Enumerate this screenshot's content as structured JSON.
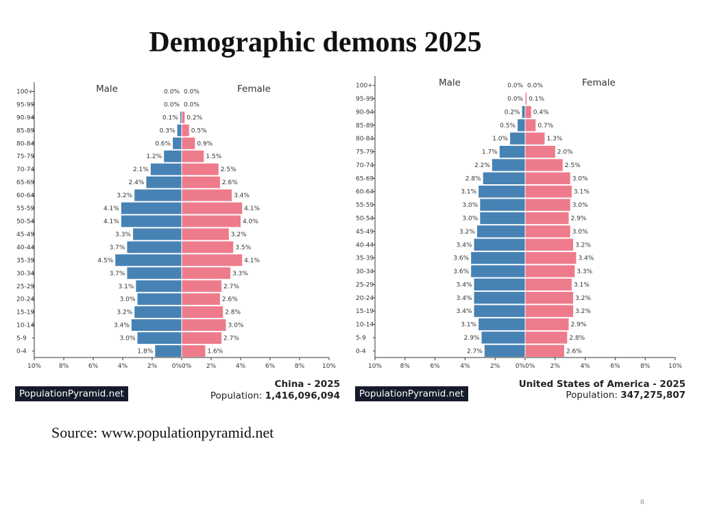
{
  "slide": {
    "title": "Demographic demons 2025",
    "source": "Source: www.populationpyramid.net",
    "page_number": "8"
  },
  "colors": {
    "male": "#4682b4",
    "female": "#ee7b8b",
    "axis": "#333333"
  },
  "chart_data": [
    {
      "type": "bar",
      "orientation": "population-pyramid",
      "series_labels": {
        "male": "Male",
        "female": "Female"
      },
      "categories": [
        "100+",
        "95-99",
        "90-94",
        "85-89",
        "80-84",
        "75-79",
        "70-74",
        "65-69",
        "60-64",
        "55-59",
        "50-54",
        "45-49",
        "40-44",
        "35-39",
        "30-34",
        "25-29",
        "20-24",
        "15-19",
        "10-14",
        "5-9",
        "0-4"
      ],
      "male": [
        0.0,
        0.0,
        0.1,
        0.3,
        0.6,
        1.2,
        2.1,
        2.4,
        3.2,
        4.1,
        4.1,
        3.3,
        3.7,
        4.5,
        3.7,
        3.1,
        3.0,
        3.2,
        3.4,
        3.0,
        1.8
      ],
      "female": [
        0.0,
        0.0,
        0.2,
        0.5,
        0.9,
        1.5,
        2.5,
        2.6,
        3.4,
        4.1,
        4.0,
        3.2,
        3.5,
        4.1,
        3.3,
        2.7,
        2.6,
        2.8,
        3.0,
        2.7,
        1.6
      ],
      "xlim": [
        -10,
        10
      ],
      "x_ticks": [
        "10%",
        "8%",
        "6%",
        "4%",
        "2%",
        "0%",
        "0%",
        "2%",
        "4%",
        "6%",
        "8%",
        "10%"
      ],
      "brand": "PopulationPyramid.net",
      "country": "China - 2025",
      "population_label": "Population:",
      "population": "1,416,096,094"
    },
    {
      "type": "bar",
      "orientation": "population-pyramid",
      "series_labels": {
        "male": "Male",
        "female": "Female"
      },
      "categories": [
        "100+",
        "95-99",
        "90-94",
        "85-89",
        "80-84",
        "75-79",
        "70-74",
        "65-69",
        "60-64",
        "55-59",
        "50-54",
        "45-49",
        "40-44",
        "35-39",
        "30-34",
        "25-29",
        "20-24",
        "15-19",
        "10-14",
        "5-9",
        "0-4"
      ],
      "male": [
        0.0,
        0.0,
        0.2,
        0.5,
        1.0,
        1.7,
        2.2,
        2.8,
        3.1,
        3.0,
        3.0,
        3.2,
        3.4,
        3.6,
        3.6,
        3.4,
        3.4,
        3.4,
        3.1,
        2.9,
        2.7
      ],
      "female": [
        0.0,
        0.1,
        0.4,
        0.7,
        1.3,
        2.0,
        2.5,
        3.0,
        3.1,
        3.0,
        2.9,
        3.0,
        3.2,
        3.4,
        3.3,
        3.1,
        3.2,
        3.2,
        2.9,
        2.8,
        2.6
      ],
      "xlim": [
        -10,
        10
      ],
      "x_ticks": [
        "10%",
        "8%",
        "6%",
        "4%",
        "2%",
        "0%",
        "0%",
        "2%",
        "4%",
        "6%",
        "8%",
        "10%"
      ],
      "brand": "PopulationPyramid.net",
      "country": "United States of America - 2025",
      "population_label": "Population:",
      "population": "347,275,807"
    }
  ]
}
